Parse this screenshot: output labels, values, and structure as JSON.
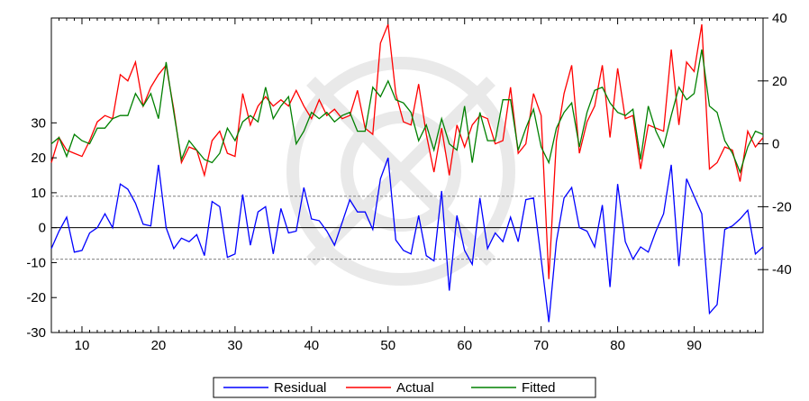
{
  "chart_data": {
    "type": "line",
    "title": "",
    "x": [
      6,
      7,
      8,
      9,
      10,
      11,
      12,
      13,
      14,
      15,
      16,
      17,
      18,
      19,
      20,
      21,
      22,
      23,
      24,
      25,
      26,
      27,
      28,
      29,
      30,
      31,
      32,
      33,
      34,
      35,
      36,
      37,
      38,
      39,
      40,
      41,
      42,
      43,
      44,
      45,
      46,
      47,
      48,
      49,
      50,
      51,
      52,
      53,
      54,
      55,
      56,
      57,
      58,
      59,
      60,
      61,
      62,
      63,
      64,
      65,
      66,
      67,
      68,
      69,
      70,
      71,
      72,
      73,
      74,
      75,
      76,
      77,
      78,
      79,
      80,
      81,
      82,
      83,
      84,
      85,
      86,
      87,
      88,
      89,
      90,
      91,
      92,
      93,
      94,
      95,
      96,
      97,
      98,
      99
    ],
    "xlim": [
      6,
      99
    ],
    "x_ticks": [
      10,
      20,
      30,
      40,
      50,
      60,
      70,
      80,
      90
    ],
    "left_axis": {
      "range": [
        -30,
        60
      ],
      "ticks": [
        -30,
        -20,
        -10,
        0,
        10,
        20,
        30
      ]
    },
    "right_axis": {
      "range": [
        -60,
        40
      ],
      "ticks": [
        -40,
        -20,
        0,
        20,
        40
      ]
    },
    "reference_lines": {
      "left_solid": [
        0
      ],
      "left_dashed": [
        9,
        -9
      ]
    },
    "series": [
      {
        "name": "Residual",
        "color": "#0000ff",
        "axis": "left",
        "values": [
          -6,
          -1,
          3,
          -7,
          -6.5,
          -1.5,
          0,
          4,
          0,
          12.5,
          11,
          7,
          1,
          0.5,
          18,
          0,
          -6,
          -3,
          -4,
          -2,
          -8,
          7.5,
          6,
          -8.5,
          -7.5,
          9.5,
          -5,
          4.5,
          6,
          -7.5,
          5.5,
          -1.5,
          -1,
          11.5,
          2.5,
          2,
          -1,
          -5,
          1.5,
          8,
          4.5,
          4.5,
          -0.5,
          14,
          20,
          -3.5,
          -6.5,
          -7.5,
          3.5,
          -8,
          -9.5,
          10.5,
          -18,
          3.5,
          -6.5,
          -10.5,
          8.5,
          -6,
          -1.5,
          -4,
          3,
          -4,
          8,
          8.5,
          -9,
          -27,
          -4,
          8.5,
          11.5,
          0,
          -1,
          -5.5,
          6.5,
          -17,
          12.5,
          -4,
          -9,
          -5.5,
          -7,
          -1,
          4,
          18,
          -11,
          14,
          9,
          4,
          -24.5,
          -22,
          -0.5,
          0.5,
          2.5,
          5,
          -7.5,
          -5.5
        ]
      },
      {
        "name": "Actual",
        "color": "#ff0000",
        "axis": "right",
        "values": [
          -6,
          2,
          -2,
          -3,
          -4,
          1,
          7,
          9,
          8,
          22,
          20,
          26,
          12,
          18,
          22,
          25,
          11,
          -6,
          -1,
          -2,
          -10,
          1,
          4,
          -3,
          -4,
          16,
          6,
          12,
          15,
          12,
          14,
          12,
          17,
          12,
          8,
          14,
          9,
          11,
          8,
          9,
          17,
          5,
          3,
          32,
          38,
          16,
          7,
          6,
          19,
          3,
          -9,
          5,
          -10,
          6,
          -1,
          6,
          9,
          8,
          0,
          1,
          18,
          -3,
          0,
          16,
          9,
          -43,
          1,
          16,
          25,
          -3,
          7,
          12,
          25,
          2,
          24,
          8,
          9,
          -8,
          6,
          5,
          4,
          30,
          6,
          26,
          23,
          38,
          -8,
          -6,
          -1,
          -2,
          -12,
          4,
          -1,
          2
        ]
      },
      {
        "name": "Fitted",
        "color": "#008000",
        "axis": "right",
        "values": [
          0,
          2,
          -4,
          3,
          1,
          0,
          5,
          5,
          8,
          9,
          9,
          16,
          12,
          16,
          8,
          26,
          10,
          -5,
          1,
          -2,
          -5,
          -6,
          -3,
          5,
          1,
          7,
          9,
          7,
          18,
          8,
          12,
          15,
          0,
          4,
          10,
          8,
          10,
          7,
          9,
          10,
          4,
          4,
          18,
          15,
          20,
          14,
          13,
          10,
          1,
          6,
          -2,
          8,
          0,
          -2,
          12,
          -6,
          10,
          1,
          1,
          14,
          14,
          -2,
          5,
          11,
          -1,
          -6,
          5,
          10,
          13,
          -1,
          10,
          17,
          18,
          13,
          10,
          9,
          11,
          -5,
          12,
          4,
          -1,
          9,
          18,
          14,
          16,
          30,
          12,
          10,
          1,
          -3,
          -9,
          -1,
          4,
          3
        ]
      }
    ],
    "legend": {
      "position": "bottom",
      "entries": [
        "Residual",
        "Actual",
        "Fitted"
      ]
    }
  }
}
